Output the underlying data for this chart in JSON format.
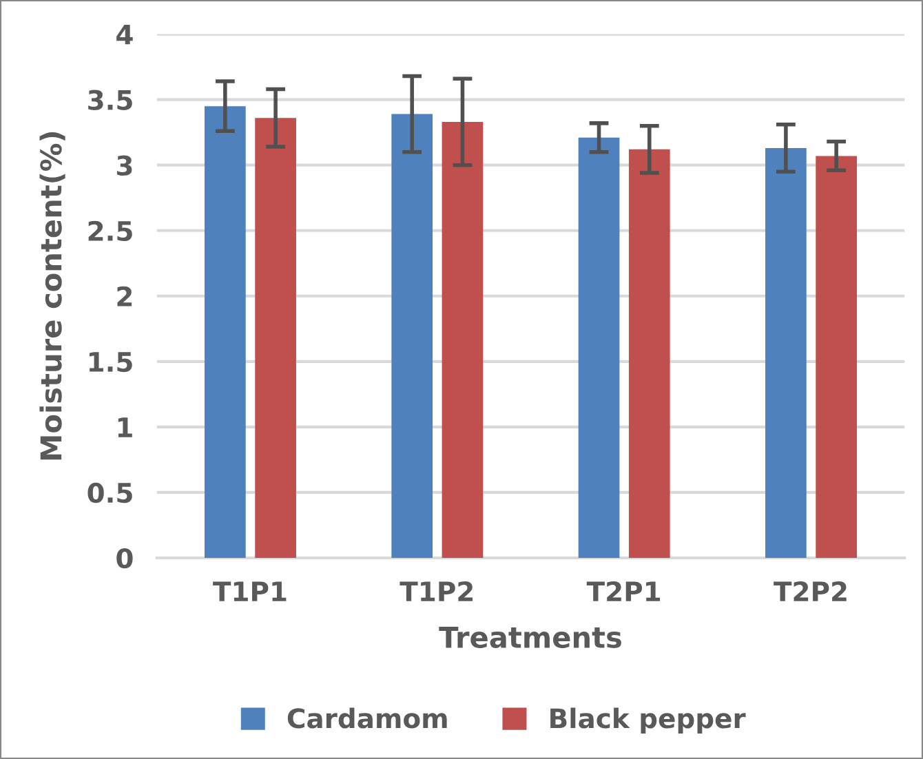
{
  "chart_data": {
    "type": "bar",
    "xlabel": "Treatments",
    "ylabel": "Moisture content(%)",
    "categories": [
      "T1P1",
      "T1P2",
      "T2P1",
      "T2P2"
    ],
    "series": [
      {
        "name": "Cardamom",
        "color": "#4f81bd",
        "values": [
          3.45,
          3.39,
          3.21,
          3.13
        ],
        "errors": [
          0.19,
          0.29,
          0.11,
          0.18
        ]
      },
      {
        "name": "Black pepper",
        "color": "#c0504d",
        "values": [
          3.36,
          3.33,
          3.12,
          3.07
        ],
        "errors": [
          0.22,
          0.33,
          0.18,
          0.11
        ]
      }
    ],
    "ylim": [
      0,
      4
    ],
    "yticks": [
      0,
      0.5,
      1,
      1.5,
      2,
      2.5,
      3,
      3.5,
      4
    ],
    "grid": "y",
    "legend": "bottom"
  }
}
